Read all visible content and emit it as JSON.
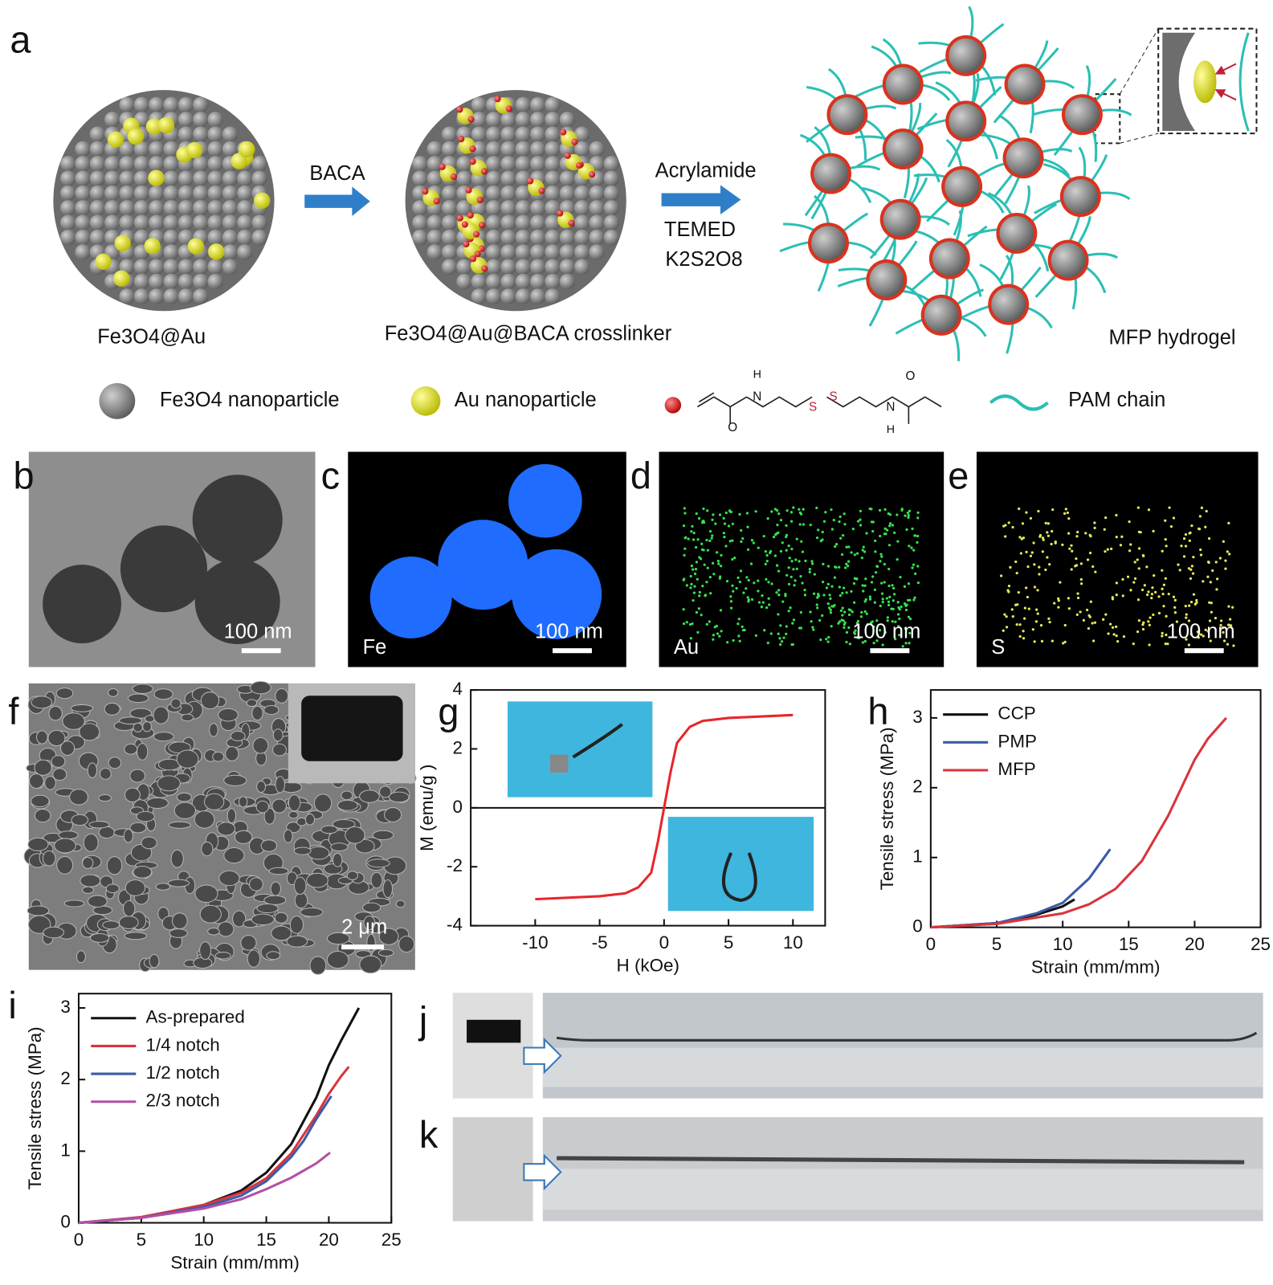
{
  "panels": {
    "a": {
      "label": "a",
      "particle1": "Fe3O4@Au",
      "step1": "BACA",
      "particle2": "Fe3O4@Au@BACA crosslinker",
      "step2": [
        "Acrylamide",
        "TEMED",
        "K2S2O8"
      ],
      "product": "MFP hydrogel",
      "legend": [
        "Fe3O4 nanoparticle",
        "Au nanoparticle",
        "PAM chain"
      ],
      "structure_atoms": [
        "H",
        "N",
        "O",
        "S",
        "S",
        "N",
        "H",
        "O"
      ]
    },
    "b": {
      "label": "b",
      "scale": "100 nm"
    },
    "c": {
      "label": "c",
      "scale": "100 nm",
      "element": "Fe"
    },
    "d": {
      "label": "d",
      "scale": "100 nm",
      "element": "Au"
    },
    "e": {
      "label": "e",
      "scale": "100 nm",
      "element": "S"
    },
    "f": {
      "label": "f",
      "scale": "2 μm"
    },
    "g": {
      "label": "g"
    },
    "h": {
      "label": "h"
    },
    "i": {
      "label": "i"
    },
    "j": {
      "label": "j"
    },
    "k": {
      "label": "k"
    }
  },
  "chart_data": [
    {
      "type": "line",
      "xlabel": "H (kOe)",
      "ylabel": "M (emu/g )",
      "xlim": [
        -15,
        12.5
      ],
      "ylim": [
        -4,
        4
      ],
      "xticks": [
        -10,
        -5,
        0,
        5,
        10
      ],
      "yticks": [
        -4,
        -2,
        0,
        2,
        4
      ],
      "zero_line": true,
      "series": [
        {
          "name": "MFP",
          "color": "#e8262a",
          "x": [
            -10,
            -5,
            -3,
            -2,
            -1,
            -0.5,
            0,
            0.5,
            1,
            2,
            3,
            5,
            10
          ],
          "values": [
            -3.1,
            -3.0,
            -2.9,
            -2.7,
            -2.2,
            -1.2,
            0,
            1.2,
            2.2,
            2.75,
            2.95,
            3.05,
            3.15
          ]
        }
      ],
      "legend": false
    },
    {
      "type": "line",
      "xlabel": "Strain (mm/mm)",
      "ylabel": "Tensile stress (MPa)",
      "xlim": [
        0,
        25
      ],
      "ylim": [
        0,
        3.4
      ],
      "xticks": [
        0,
        5,
        10,
        15,
        20,
        25
      ],
      "yticks": [
        0,
        1,
        2,
        3
      ],
      "legend": "top-left",
      "series": [
        {
          "name": "CCP",
          "color": "#111111",
          "x": [
            0,
            5,
            8,
            10,
            10.9
          ],
          "values": [
            0,
            0.06,
            0.18,
            0.3,
            0.4
          ]
        },
        {
          "name": "PMP",
          "color": "#3b5ba8",
          "x": [
            0,
            5,
            8,
            10,
            12,
            13.6
          ],
          "values": [
            0,
            0.06,
            0.2,
            0.35,
            0.7,
            1.12
          ]
        },
        {
          "name": "MFP",
          "color": "#d9343b",
          "x": [
            0,
            5,
            10,
            12,
            14,
            16,
            18,
            19,
            20,
            21,
            22.4
          ],
          "values": [
            0,
            0.05,
            0.2,
            0.33,
            0.55,
            0.95,
            1.6,
            2.0,
            2.4,
            2.7,
            3.0
          ]
        }
      ]
    },
    {
      "type": "line",
      "xlabel": "Strain (mm/mm)",
      "ylabel": "Tensile stress (MPa)",
      "xlim": [
        0,
        25
      ],
      "ylim": [
        0,
        3.2
      ],
      "xticks": [
        0,
        5,
        10,
        15,
        20,
        25
      ],
      "yticks": [
        0,
        1,
        2,
        3
      ],
      "legend": "top-left",
      "series": [
        {
          "name": "As-prepared",
          "color": "#111111",
          "x": [
            0,
            5,
            10,
            13,
            15,
            17,
            19,
            20,
            21,
            22.4
          ],
          "values": [
            0,
            0.07,
            0.25,
            0.45,
            0.7,
            1.1,
            1.75,
            2.2,
            2.55,
            3.0
          ]
        },
        {
          "name": "1/4 notch",
          "color": "#d9343b",
          "x": [
            0,
            5,
            10,
            13,
            15,
            17,
            19,
            20,
            21,
            21.6
          ],
          "values": [
            0,
            0.08,
            0.25,
            0.42,
            0.62,
            0.97,
            1.5,
            1.8,
            2.05,
            2.18
          ]
        },
        {
          "name": "1/2 notch",
          "color": "#3b5ba8",
          "x": [
            0,
            5,
            10,
            13,
            15,
            17,
            18,
            19,
            20.2
          ],
          "values": [
            0,
            0.07,
            0.22,
            0.38,
            0.58,
            0.92,
            1.15,
            1.45,
            1.77
          ]
        },
        {
          "name": "2/3 notch",
          "color": "#b14fa6",
          "x": [
            0,
            5,
            10,
            13,
            15,
            17,
            19,
            20.1
          ],
          "values": [
            0,
            0.07,
            0.2,
            0.33,
            0.47,
            0.63,
            0.83,
            0.98
          ]
        }
      ]
    }
  ]
}
